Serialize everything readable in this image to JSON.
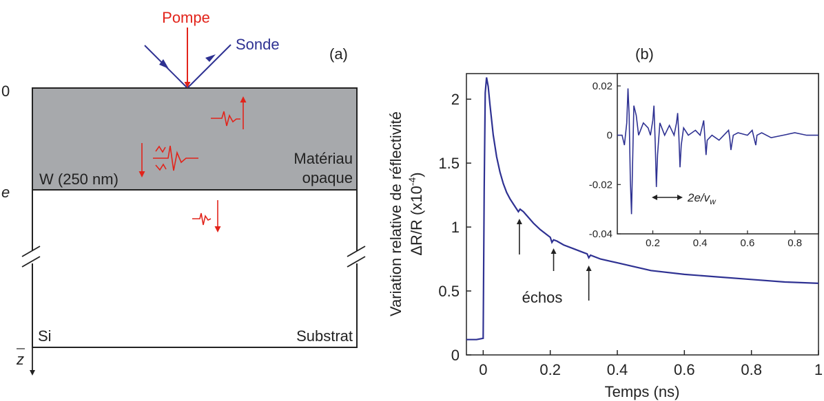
{
  "colors": {
    "pump": "#e2231a",
    "probe": "#2e3192",
    "layer_fill": "#a7a9ac",
    "curve": "#2e3192",
    "ink": "#222222"
  },
  "panel_a": {
    "tag": "(a)",
    "pump_label": "Pompe",
    "probe_label": "Sonde",
    "depth_top": "0",
    "depth_e": "e",
    "layer_name": "W (250 nm)",
    "layer_desc_1": "Matériau",
    "layer_desc_2": "opaque",
    "substrate_name": "Si",
    "substrate_desc": "Substrat",
    "axis_z": "z"
  },
  "chart_data": [
    {
      "id": "main",
      "type": "line",
      "title": "(b)",
      "xlabel": "Temps (ns)",
      "ylabel_line1": "Variation relative de réflectivité",
      "ylabel_line2": "ΔR/R (x10",
      "ylabel_exp": "-4",
      "ylabel_close": ")",
      "xlim": [
        -0.05,
        1.0
      ],
      "ylim": [
        0,
        2.2
      ],
      "xticks": [
        0,
        0.2,
        0.4,
        0.6,
        0.8,
        1
      ],
      "xtick_labels": [
        "0",
        "0.2",
        "0.4",
        "0.6",
        "0.8",
        "1"
      ],
      "yticks": [
        0,
        0.5,
        1,
        1.5,
        2
      ],
      "ytick_labels": [
        "0",
        "0.5",
        "1",
        "1.5",
        "2"
      ],
      "annotation": "échos",
      "echo_arrows_x": [
        0.108,
        0.21,
        0.315
      ],
      "series": [
        {
          "x": [
            -0.05,
            -0.02,
            0.0,
            0.003,
            0.006,
            0.01,
            0.015,
            0.02,
            0.03,
            0.04,
            0.05,
            0.06,
            0.07,
            0.08,
            0.09,
            0.1,
            0.105,
            0.11,
            0.12,
            0.13,
            0.15,
            0.17,
            0.19,
            0.2,
            0.205,
            0.21,
            0.22,
            0.24,
            0.27,
            0.3,
            0.31,
            0.315,
            0.32,
            0.35,
            0.4,
            0.45,
            0.5,
            0.6,
            0.7,
            0.8,
            0.9,
            1.0
          ],
          "y": [
            0.12,
            0.12,
            0.13,
            1.3,
            2.05,
            2.17,
            2.1,
            1.96,
            1.72,
            1.55,
            1.43,
            1.34,
            1.27,
            1.22,
            1.18,
            1.14,
            1.12,
            1.14,
            1.12,
            1.09,
            1.03,
            0.98,
            0.94,
            0.92,
            0.88,
            0.9,
            0.89,
            0.86,
            0.83,
            0.8,
            0.79,
            0.76,
            0.78,
            0.75,
            0.72,
            0.69,
            0.66,
            0.63,
            0.61,
            0.59,
            0.57,
            0.56
          ]
        }
      ]
    },
    {
      "id": "inset",
      "type": "line",
      "xlim": [
        0.05,
        0.9
      ],
      "ylim": [
        -0.04,
        0.025
      ],
      "xticks": [
        0.2,
        0.4,
        0.6,
        0.8
      ],
      "xtick_labels": [
        "0.2",
        "0.4",
        "0.6",
        "0.8"
      ],
      "yticks": [
        0.02,
        0,
        -0.02,
        -0.04
      ],
      "ytick_labels": [
        "0.02",
        "0",
        "-0.02",
        "-0.04"
      ],
      "annotation": "2e/v",
      "annotation_sub": "w",
      "series": [
        {
          "x": [
            0.05,
            0.07,
            0.08,
            0.09,
            0.095,
            0.1,
            0.105,
            0.11,
            0.115,
            0.12,
            0.13,
            0.14,
            0.16,
            0.18,
            0.19,
            0.2,
            0.205,
            0.21,
            0.215,
            0.22,
            0.23,
            0.25,
            0.27,
            0.29,
            0.3,
            0.305,
            0.31,
            0.315,
            0.32,
            0.33,
            0.35,
            0.38,
            0.4,
            0.41,
            0.415,
            0.42,
            0.425,
            0.43,
            0.45,
            0.48,
            0.5,
            0.52,
            0.525,
            0.53,
            0.54,
            0.56,
            0.6,
            0.62,
            0.63,
            0.635,
            0.64,
            0.66,
            0.7,
            0.75,
            0.8,
            0.85,
            0.9
          ],
          "y": [
            0.0,
            0.0,
            -0.004,
            0.005,
            0.019,
            0.008,
            -0.018,
            -0.032,
            -0.01,
            0.012,
            0.008,
            0.0,
            0.005,
            0.003,
            0.0,
            0.006,
            0.012,
            -0.003,
            -0.021,
            -0.008,
            0.005,
            0.0,
            0.004,
            0.0,
            0.005,
            0.009,
            0.0,
            -0.013,
            -0.004,
            0.003,
            0.0,
            0.002,
            0.0,
            0.004,
            0.006,
            -0.001,
            -0.008,
            -0.002,
            0.0,
            -0.002,
            0.0,
            0.002,
            -0.001,
            -0.006,
            0.0,
            0.001,
            0.0,
            0.002,
            -0.002,
            -0.004,
            0.0,
            0.001,
            -0.001,
            0.0,
            0.001,
            0.0,
            0.0
          ]
        }
      ]
    }
  ]
}
